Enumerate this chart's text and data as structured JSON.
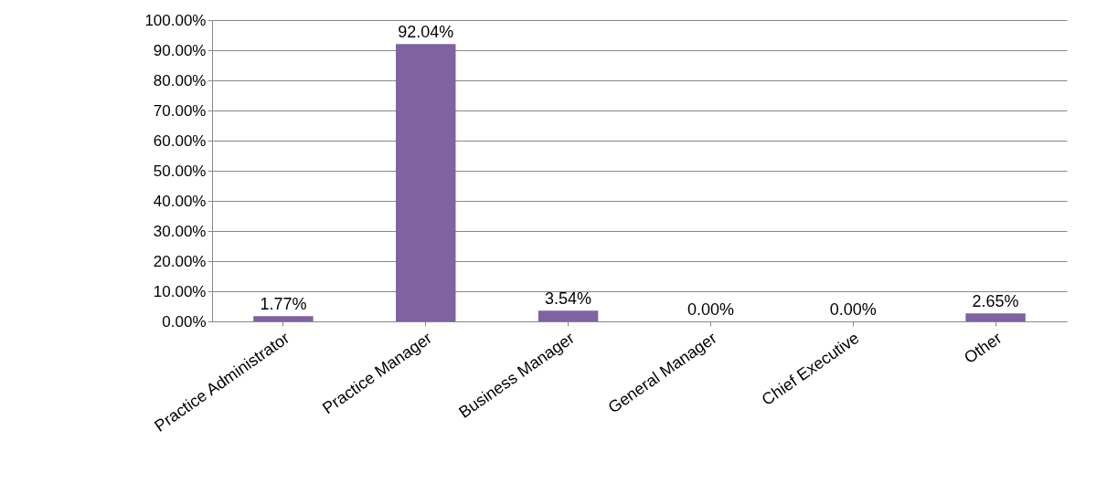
{
  "chart_data": {
    "type": "bar",
    "categories": [
      "Practice Administrator",
      "Practice Manager",
      "Business Manager",
      "General Manager",
      "Chief Executive",
      "Other"
    ],
    "values": [
      1.77,
      92.04,
      3.54,
      0,
      0,
      2.65
    ],
    "value_labels": [
      "1.77%",
      "92.04%",
      "3.54%",
      "0.00%",
      "0.00%",
      "2.65%"
    ],
    "color": "#7f63a1",
    "ylim": [
      0,
      100
    ],
    "yticks": [
      {
        "value": 0,
        "label": "0.00%"
      },
      {
        "value": 10,
        "label": "10.00%"
      },
      {
        "value": 20,
        "label": "20.00%"
      },
      {
        "value": 30,
        "label": "30.00%"
      },
      {
        "value": 40,
        "label": "40.00%"
      },
      {
        "value": 50,
        "label": "50.00%"
      },
      {
        "value": 60,
        "label": "60.00%"
      },
      {
        "value": 70,
        "label": "70.00%"
      },
      {
        "value": 80,
        "label": "80.00%"
      },
      {
        "value": 90,
        "label": "90.00%"
      },
      {
        "value": 100,
        "label": "100.00%"
      }
    ],
    "grid": "y"
  }
}
